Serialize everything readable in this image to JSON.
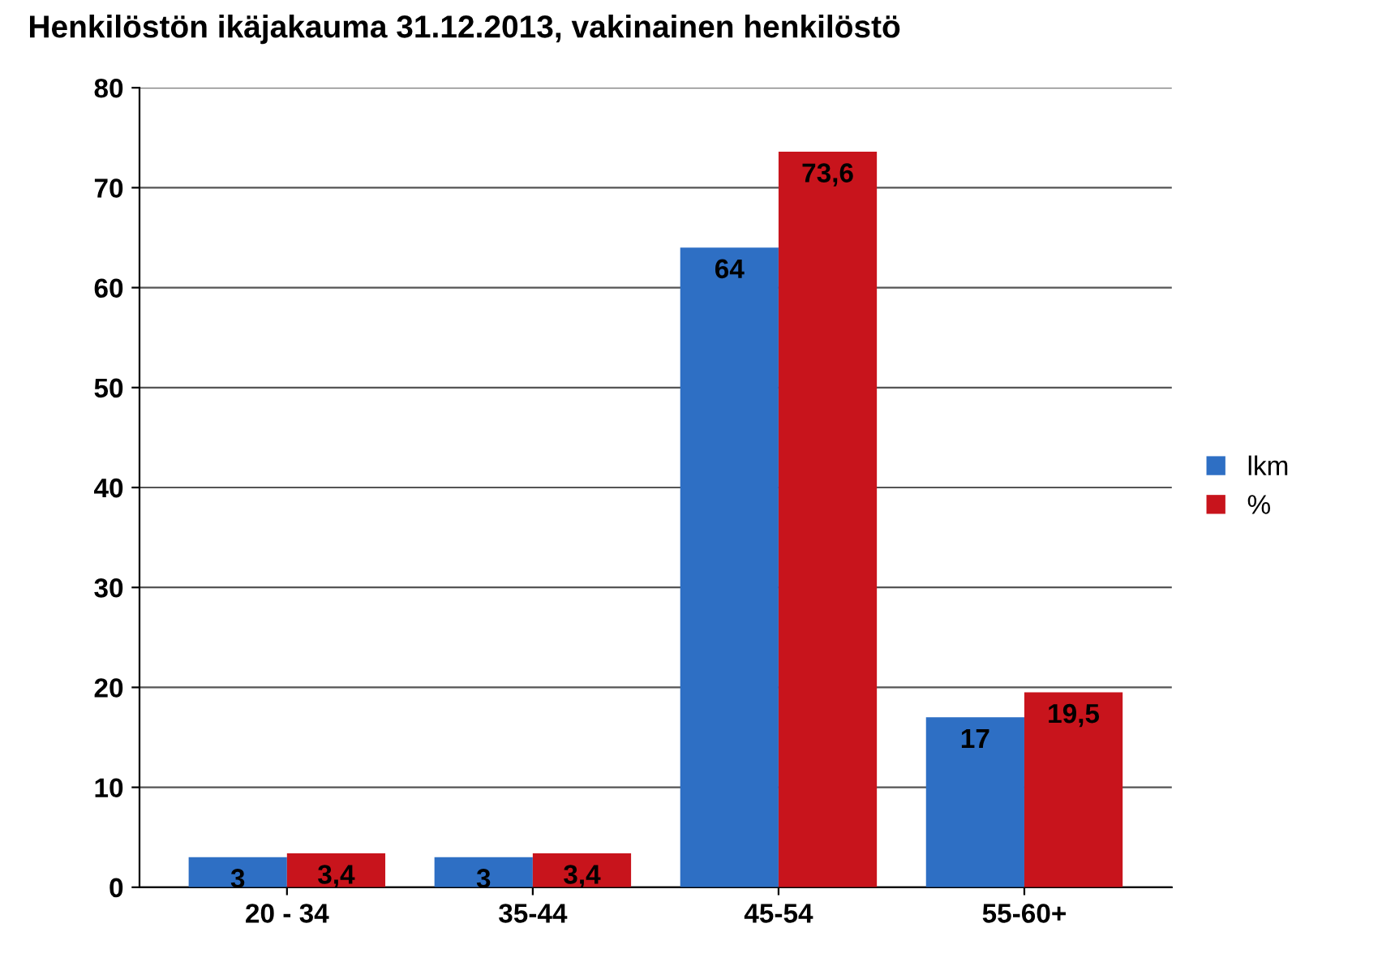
{
  "chart_data": {
    "type": "bar",
    "title": "Henkilöstön ikäjakauma 31.12.2013, vakinainen henkilöstö",
    "categories": [
      "20 - 34",
      "35-44",
      "45-54",
      "55-60+"
    ],
    "series": [
      {
        "name": "lkm",
        "color": "#2e6fc4",
        "values": [
          3,
          3,
          64,
          17
        ],
        "value_labels": [
          "3",
          "3",
          "64",
          "17"
        ]
      },
      {
        "name": "%",
        "color": "#c8141c",
        "values": [
          3.4,
          3.4,
          73.6,
          19.5
        ],
        "value_labels": [
          "3,4",
          "3,4",
          "73,6",
          "19,5"
        ]
      }
    ],
    "ylim": [
      0,
      80
    ],
    "yticks": [
      0,
      10,
      20,
      30,
      40,
      50,
      60,
      70,
      80
    ],
    "grid": "y",
    "legend": "right"
  }
}
